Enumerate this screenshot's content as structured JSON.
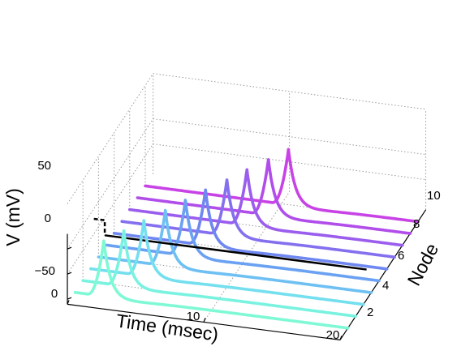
{
  "chart_data": {
    "type": "line",
    "projection": "3d",
    "xlabel": "Time (msec)",
    "ylabel": "V (mV)",
    "zlabel": "Node",
    "x_ticks": [
      "0",
      "10",
      "20"
    ],
    "y_ticks": [
      "2",
      "4",
      "6",
      "8",
      "10"
    ],
    "v_ticks": [
      "50",
      "0",
      "−50"
    ],
    "xlim": [
      0,
      20
    ],
    "nodes": [
      1,
      2,
      3,
      4,
      5,
      6,
      7,
      8,
      9,
      10
    ],
    "v_rest_mV": -60,
    "v_peak_mV": 50,
    "spike_peak_times_msec": [
      2.1,
      3.0,
      3.9,
      4.9,
      5.8,
      6.7,
      7.7,
      8.6,
      9.6,
      10.5
    ],
    "stimulus": {
      "step_start_msec": 0.4,
      "step_end_msec": 0.8,
      "level_mV": 30,
      "baseline_mV": 0,
      "end_msec": 20,
      "style": "black, dashed during step"
    },
    "colors": [
      "#7ff9d5",
      "#7af2e0",
      "#74dfee",
      "#6ec0f3",
      "#6aa1f2",
      "#6f87f0",
      "#8470ee",
      "#9a5ded",
      "#b14dea",
      "#c843e6"
    ],
    "grid": "dotted box grid",
    "view": "3d perspective"
  }
}
